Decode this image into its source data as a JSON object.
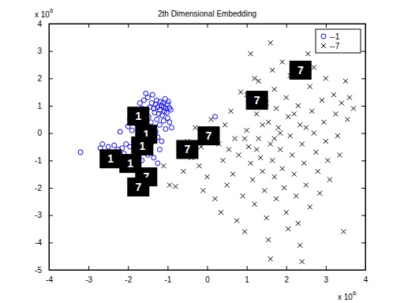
{
  "chart_data": {
    "type": "scatter",
    "title": "2th Dimensional Embedding",
    "x_multiplier": {
      "text": "x 10",
      "exponent": "6"
    },
    "y_multiplier": {
      "text": "x 10",
      "exponent": "6"
    },
    "xlim": [
      -4,
      4
    ],
    "xticks": [
      -4,
      -3,
      -2,
      -1,
      0,
      1,
      2,
      3,
      4
    ],
    "ylim": [
      -5,
      4
    ],
    "yticks": [
      -5,
      -4,
      -3,
      -2,
      -1,
      0,
      1,
      2,
      3,
      4
    ],
    "legend": "northeast",
    "series": [
      {
        "name": "--1",
        "color": "#0000ff",
        "marker": "o",
        "x": [
          -1.1,
          -1.05,
          -1.15,
          -1.2,
          -1.0,
          -1.12,
          -1.25,
          -0.95,
          -1.08,
          -1.18,
          -1.3,
          -1.02,
          -1.22,
          -0.98,
          -1.35,
          -1.14,
          -1.28,
          -1.4,
          -1.06,
          -0.92,
          -1.45,
          -1.33,
          -1.5,
          -1.38,
          -1.55,
          -1.6,
          -1.48,
          -1.27,
          -1.1,
          -1.42,
          -1.58,
          -1.65,
          -1.7,
          -1.75,
          -1.62,
          -1.52,
          -1.35,
          -1.2,
          -1.0,
          -0.95,
          -1.3,
          -1.45,
          -1.6,
          -1.25,
          -1.15,
          -1.4,
          -1.55,
          -1.7,
          -1.85,
          -1.95,
          -2.05,
          -2.15,
          -2.25,
          -2.35,
          -1.9,
          -1.8,
          -2.0,
          -1.75,
          -1.5,
          -1.2,
          -2.5,
          -2.65,
          -2.7,
          -3.2,
          -2.1,
          -1.65,
          -1.35,
          -1.95,
          -2.2,
          -1.05,
          0.2,
          -0.9,
          -1.25,
          -1.85,
          -1.6,
          -1.75,
          -1.55
        ],
        "values": [
          0.95,
          0.9,
          1.0,
          0.85,
          1.05,
          1.1,
          0.95,
          0.92,
          0.8,
          1.15,
          1.05,
          0.75,
          0.7,
          1.15,
          0.9,
          0.65,
          1.2,
          1.1,
          1.25,
          0.85,
          0.95,
          0.75,
          1.3,
          1.4,
          1.45,
          1.2,
          0.6,
          0.5,
          0.45,
          0.4,
          0.7,
          0.9,
          1.1,
          0.55,
          0.3,
          0.15,
          0.2,
          0.3,
          0.55,
          0.4,
          0.05,
          -0.05,
          -0.1,
          -0.15,
          -0.3,
          -0.35,
          -0.45,
          -0.2,
          -0.3,
          -0.5,
          -0.4,
          -0.55,
          -0.6,
          -0.45,
          0.1,
          0.35,
          0.25,
          -0.65,
          -0.8,
          -0.6,
          -0.5,
          -0.4,
          -0.55,
          -0.7,
          -0.75,
          -1.0,
          -0.9,
          0.5,
          0.05,
          0.15,
          0.6,
          0.2,
          -1.1,
          -1.3,
          -1.55,
          -2.1,
          -2.2
        ]
      },
      {
        "name": "--7",
        "color": "#000000",
        "marker": "x",
        "x": [
          -1.1,
          -0.95,
          -0.8,
          -0.6,
          -0.4,
          -0.5,
          -0.3,
          -0.7,
          -0.2,
          -0.1,
          0.0,
          0.1,
          0.3,
          0.4,
          0.2,
          0.35,
          0.5,
          0.45,
          0.6,
          0.7,
          0.8,
          0.65,
          0.9,
          0.75,
          0.95,
          1.0,
          1.05,
          1.1,
          1.15,
          1.2,
          1.0,
          1.1,
          1.2,
          1.25,
          1.3,
          1.35,
          1.4,
          1.45,
          1.5,
          1.55,
          1.6,
          1.5,
          1.55,
          1.6,
          1.65,
          1.7,
          1.75,
          1.6,
          1.65,
          1.7,
          1.75,
          1.8,
          1.85,
          1.9,
          1.95,
          2.0,
          2.05,
          1.9,
          2.0,
          2.05,
          2.1,
          2.15,
          2.2,
          2.25,
          2.3,
          2.35,
          2.1,
          2.3,
          2.35,
          2.4,
          2.45,
          2.5,
          2.4,
          2.55,
          2.6,
          2.65,
          2.7,
          2.75,
          2.8,
          2.85,
          2.7,
          2.9,
          2.95,
          3.0,
          3.05,
          3.0,
          3.2,
          3.25,
          3.3,
          3.35,
          3.4,
          3.5,
          3.55,
          3.6,
          3.7,
          3.45,
          3.1,
          2.6,
          1.3,
          0.85,
          0.15,
          -0.15,
          0.55,
          1.25,
          1.85,
          2.2,
          1.4,
          0.95,
          2.5,
          1.7
        ],
        "values": [
          -1.2,
          -1.9,
          -1.95,
          -1.4,
          -0.9,
          -0.3,
          0.2,
          -0.6,
          -1.2,
          -2.1,
          -1.6,
          0.5,
          -0.4,
          -1.0,
          -2.4,
          -2.9,
          -1.9,
          0.3,
          0.8,
          -0.2,
          -0.8,
          -1.5,
          -2.3,
          -3.2,
          -3.6,
          0.1,
          -0.5,
          -1.1,
          -1.7,
          -2.6,
          1.4,
          2.9,
          2.0,
          0.7,
          -0.2,
          -0.9,
          -1.4,
          -2.1,
          -3.1,
          -3.9,
          -4.6,
          1.1,
          0.4,
          -0.4,
          -1.0,
          -1.6,
          -2.4,
          3.3,
          2.3,
          1.6,
          0.9,
          0.2,
          -0.6,
          -1.3,
          -2.0,
          -2.9,
          -3.5,
          2.6,
          1.3,
          0.6,
          -0.1,
          -0.8,
          -1.5,
          -2.3,
          -3.3,
          -4.1,
          2.1,
          1.0,
          0.3,
          -0.4,
          -1.1,
          -1.9,
          -4.7,
          2.9,
          1.7,
          0.8,
          0.0,
          -0.7,
          -1.4,
          -2.2,
          2.4,
          1.2,
          0.4,
          -0.3,
          -1.0,
          2.0,
          1.4,
          0.7,
          -0.1,
          -0.8,
          1.1,
          1.9,
          0.5,
          1.3,
          0.9,
          -3.6,
          -1.7,
          -2.7,
          1.9,
          1.5,
          -0.1,
          -0.5,
          -0.6,
          -0.6,
          0.0,
          0.7,
          0.3,
          -0.2,
          0.2,
          -0.2
        ]
      }
    ],
    "annotations": [
      {
        "x": 2.36,
        "y": 2.3,
        "text": "7"
      },
      {
        "x": 1.26,
        "y": 1.2,
        "text": "7"
      },
      {
        "x": 0.04,
        "y": -0.1,
        "text": "7"
      },
      {
        "x": -0.5,
        "y": -0.6,
        "text": "7"
      },
      {
        "x": -1.74,
        "y": 0.62,
        "text": "1"
      },
      {
        "x": -1.54,
        "y": -0.04,
        "text": "1"
      },
      {
        "x": -1.64,
        "y": -0.47,
        "text": "1"
      },
      {
        "x": -2.44,
        "y": -0.94,
        "text": "1"
      },
      {
        "x": -1.94,
        "y": -1.11,
        "text": "1"
      },
      {
        "x": -1.54,
        "y": -1.6,
        "text": "7"
      },
      {
        "x": -1.74,
        "y": -1.97,
        "text": "7"
      }
    ]
  }
}
